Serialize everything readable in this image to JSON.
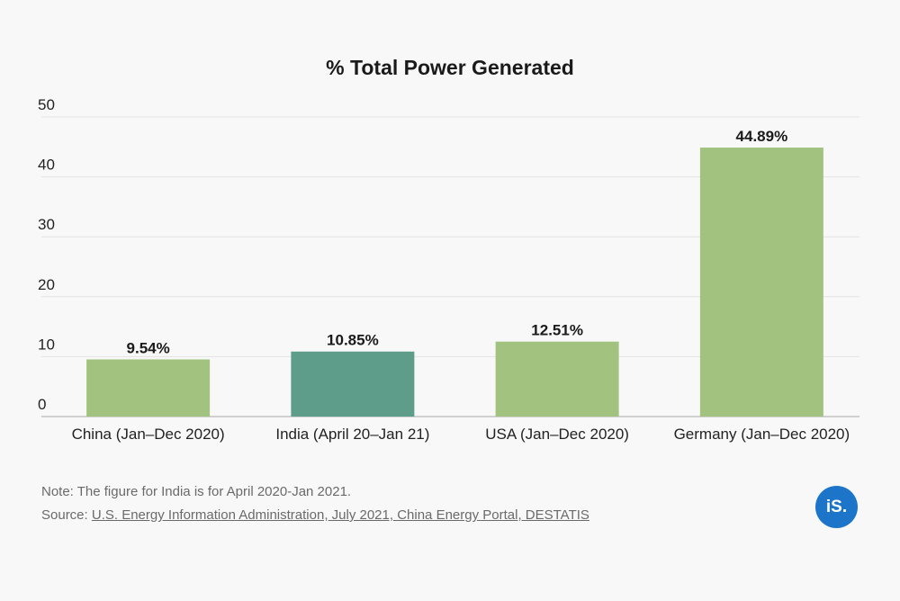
{
  "chart_data": {
    "type": "bar",
    "title": "% Total Power Generated",
    "categories": [
      "China (Jan–Dec 2020)",
      "India (April 20–Jan 21)",
      "USA (Jan–Dec 2020)",
      "Germany (Jan–Dec 2020)"
    ],
    "values": [
      9.54,
      10.85,
      12.51,
      44.89
    ],
    "data_labels": [
      "9.54%",
      "10.85%",
      "12.51%",
      "44.89%"
    ],
    "highlight_index": 1,
    "colors": {
      "bar": "#a2c380",
      "highlight": "#5f9d8b",
      "grid": "#e3e3e3",
      "axis": "#d0d0d0"
    },
    "ylim": [
      0,
      50
    ],
    "yticks": [
      0,
      10,
      20,
      30,
      40,
      50
    ],
    "grid": true,
    "xlabel": "",
    "ylabel": ""
  },
  "footer": {
    "note": "Note: The figure for India is for April 2020-Jan 2021.",
    "source_prefix": "Source: ",
    "source_link": "U.S. Energy Information Administration, July 2021, China Energy Portal, DESTATIS"
  },
  "logo": {
    "text": "iS."
  }
}
